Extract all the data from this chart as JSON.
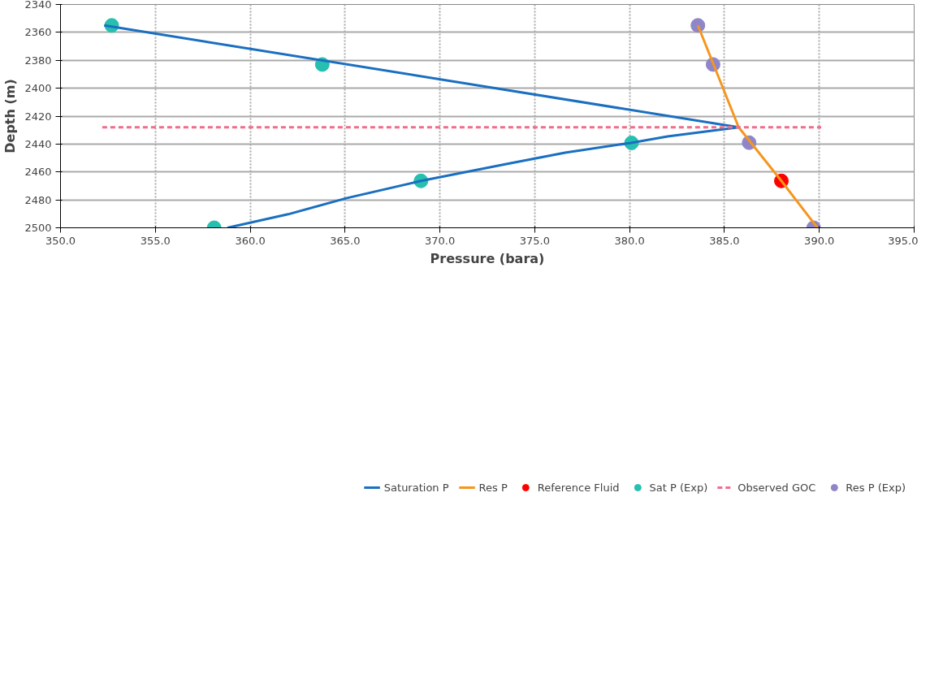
{
  "chart_data": {
    "type": "line",
    "xlabel": "Pressure (bara)",
    "ylabel": "Depth (m)",
    "xlim": [
      350,
      395
    ],
    "ylim": [
      2500,
      2340
    ],
    "xticks": [
      {
        "value": 350,
        "label": "350.0"
      },
      {
        "value": 355,
        "label": "355.0"
      },
      {
        "value": 360,
        "label": "360.0"
      },
      {
        "value": 365,
        "label": "365.0"
      },
      {
        "value": 370,
        "label": "370.0"
      },
      {
        "value": 375,
        "label": "375.0"
      },
      {
        "value": 380,
        "label": "380.0"
      },
      {
        "value": 385,
        "label": "385.0"
      },
      {
        "value": 390,
        "label": "390.0"
      },
      {
        "value": 395,
        "label": "395.0"
      }
    ],
    "yticks": [
      2340,
      2360,
      2380,
      2400,
      2420,
      2440,
      2460,
      2480,
      2500
    ],
    "grid": true,
    "legend": "bottom",
    "series": [
      {
        "name": "Saturation P",
        "color": "#1a6fc0",
        "x": [
          352.3,
          385.75,
          382,
          380,
          376.6,
          373.5,
          369,
          365.1,
          362,
          358.8
        ],
        "values": [
          2355,
          2428,
          2434.6,
          2439.3,
          2446.2,
          2454.3,
          2466.4,
          2478.7,
          2490.3,
          2500
        ]
      },
      {
        "name": "Res P",
        "color": "#f5961e",
        "x": [
          383.6,
          385.75,
          388.0,
          389.9
        ],
        "values": [
          2355,
          2428,
          2466.4,
          2500
        ]
      },
      {
        "name": "Reference Fluid",
        "type": "scatter",
        "color": "#ff0000",
        "x": [
          388.0
        ],
        "values": [
          2466.4
        ]
      },
      {
        "name": "Sat P (Exp)",
        "type": "scatter",
        "color": "#26bfb0",
        "x": [
          352.7,
          363.8,
          380.1,
          369.0,
          358.1
        ],
        "values": [
          2355,
          2383,
          2439.2,
          2466.4,
          2500
        ]
      },
      {
        "name": "Observed GOC",
        "line_style": "dashed",
        "color": "#f06e8c",
        "x": [
          352.2,
          390.1
        ],
        "values": [
          2428,
          2428
        ]
      },
      {
        "name": "Res P (Exp)",
        "type": "scatter",
        "color": "#8e86c8",
        "x": [
          383.6,
          384.4,
          386.3,
          389.7
        ],
        "values": [
          2355,
          2383,
          2439,
          2500
        ]
      }
    ]
  }
}
